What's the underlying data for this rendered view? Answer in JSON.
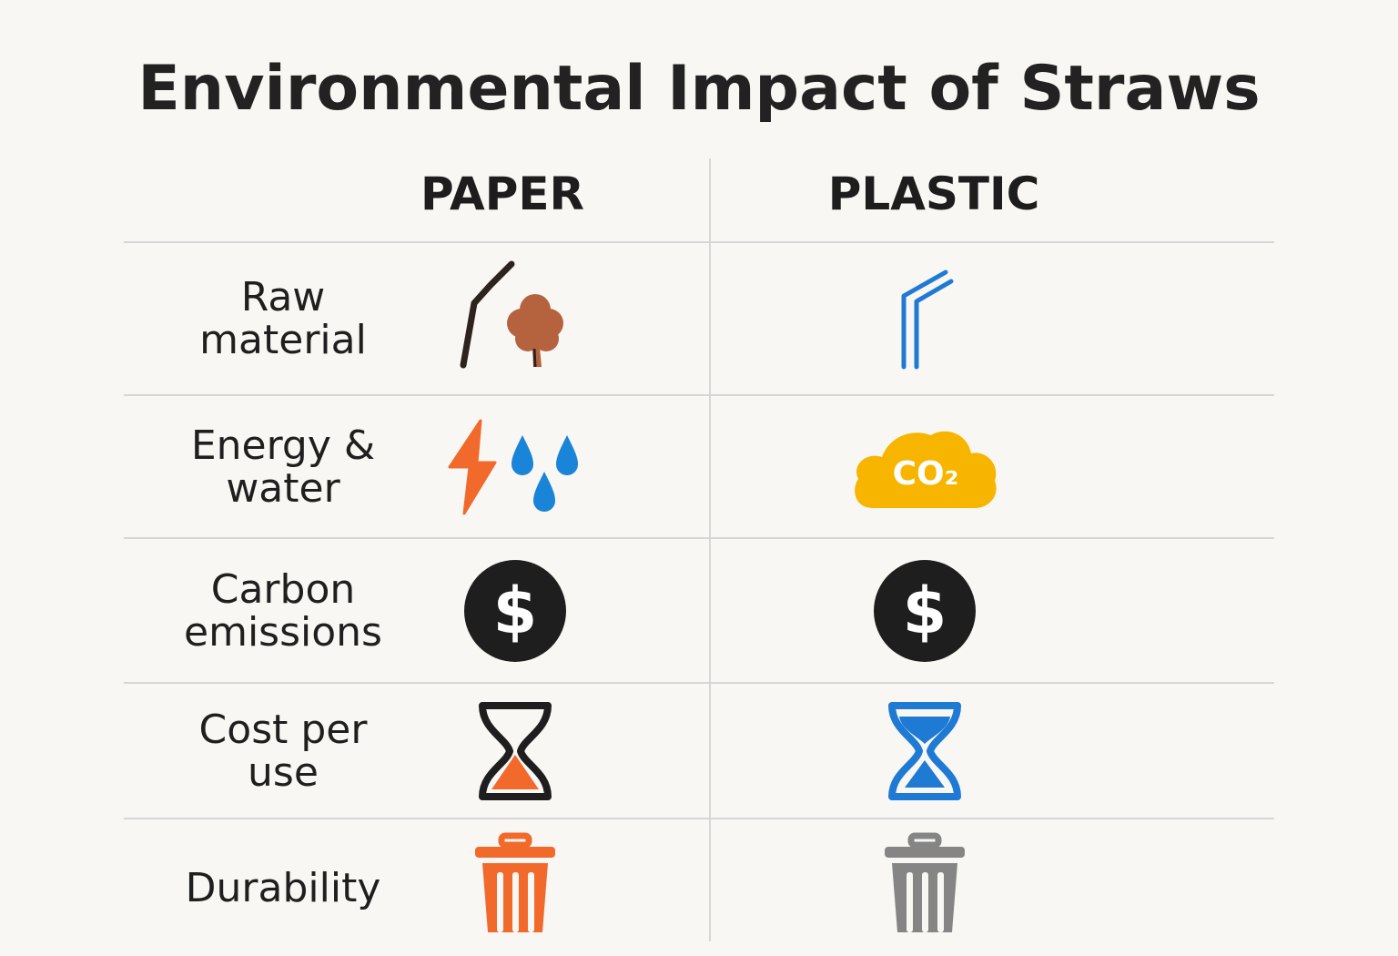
{
  "title": "Environmental Impact of Straws",
  "columns": {
    "paper": "PAPER",
    "plastic": "PLASTIC"
  },
  "rows": [
    {
      "label_lines": [
        "Raw",
        "material"
      ],
      "paper_icon": "paper-straw-and-tree-icon",
      "plastic_icon": "plastic-straw-icon"
    },
    {
      "label_lines": [
        "Energy &",
        "water"
      ],
      "paper_icon": "lightning-and-water-drops-icon",
      "plastic_icon": "co2-cloud-icon",
      "plastic_icon_text": "CO₂"
    },
    {
      "label_lines": [
        "Carbon",
        "emissions"
      ],
      "paper_icon": "dollar-coin-icon",
      "plastic_icon": "dollar-coin-icon"
    },
    {
      "label_lines": [
        "Cost per",
        "use"
      ],
      "paper_icon": "hourglass-icon",
      "plastic_icon": "hourglass-icon"
    },
    {
      "label_lines": [
        "Durability"
      ],
      "paper_icon": "trash-can-icon",
      "plastic_icon": "trash-can-icon"
    }
  ],
  "colors": {
    "paper_straw": "#2e231e",
    "tree": "#b5623f",
    "plastic_blue": "#1f7ad4",
    "lightning_orange": "#f26a2b",
    "drop_blue": "#1a84d8",
    "cloud_yellow": "#f7b500",
    "coin_black": "#1e1e1e",
    "hourglass_sand_orange": "#f26a2b",
    "hourglass_blue": "#1f7ad4",
    "trash_orange": "#f26a2b",
    "trash_gray": "#858585"
  }
}
